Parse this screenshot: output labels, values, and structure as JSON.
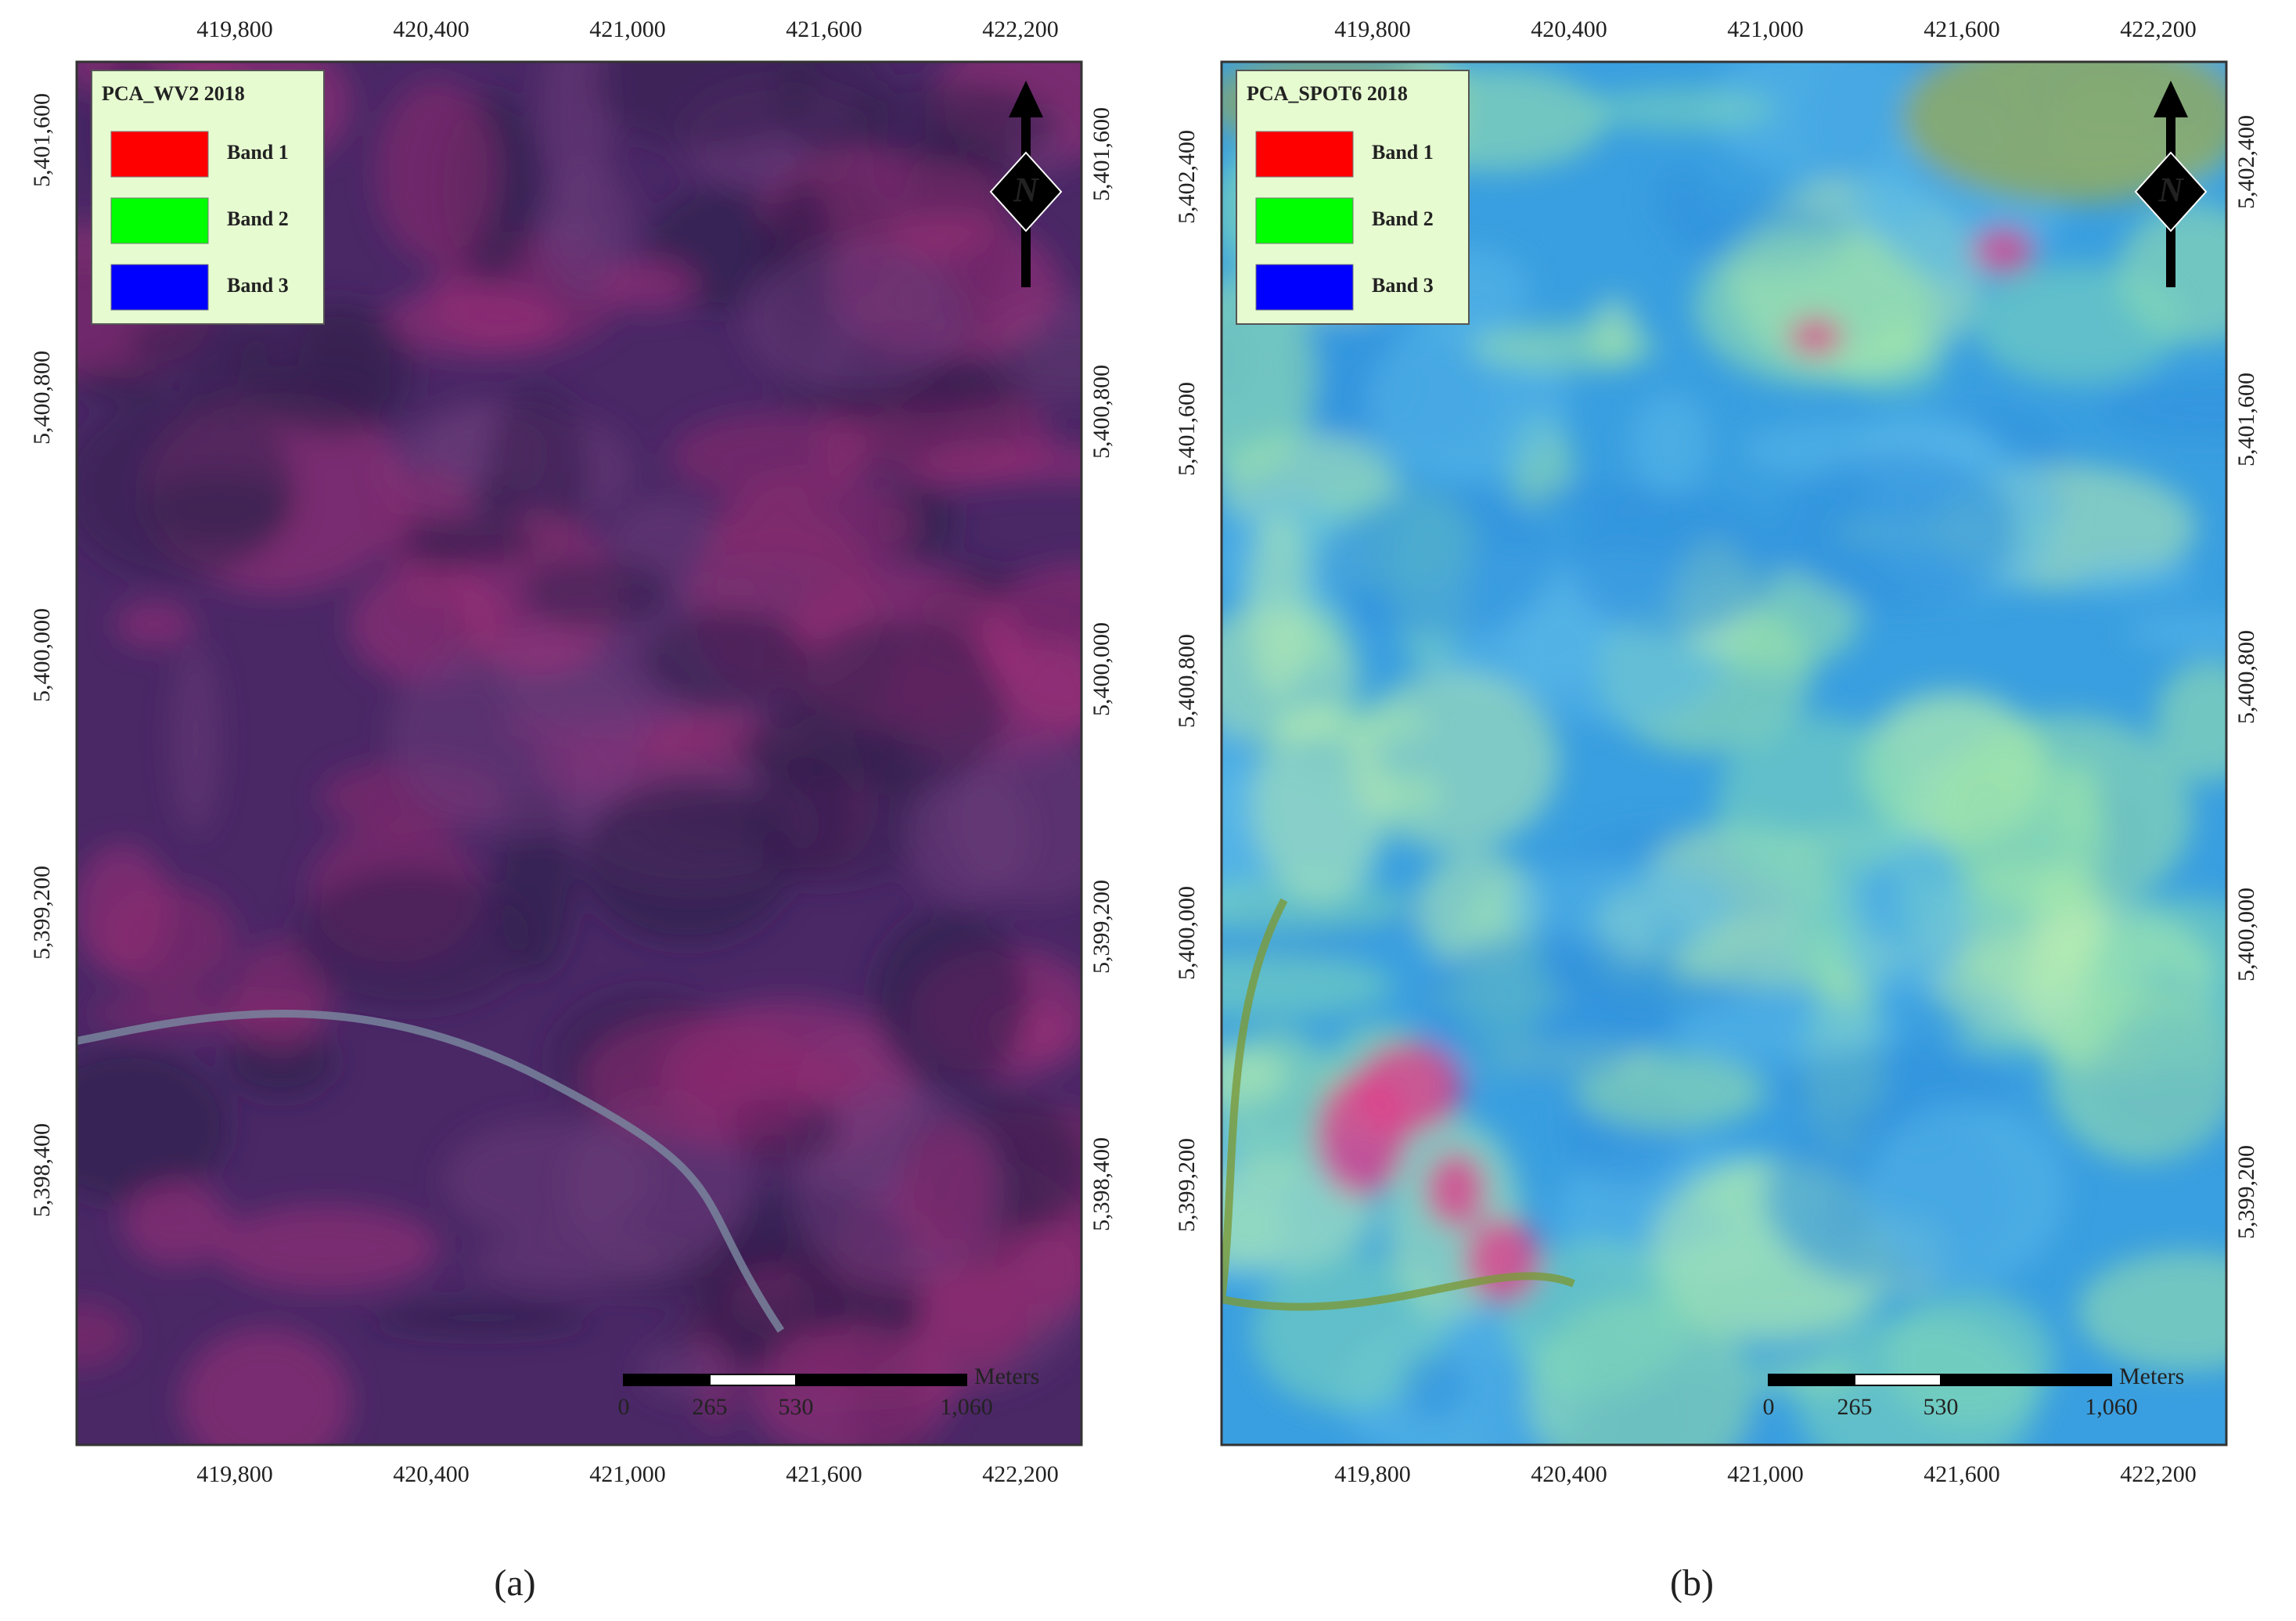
{
  "panels": [
    {
      "legend": {
        "title": "PCA_WV2 2018",
        "items": [
          {
            "label": "Band 1",
            "color": "#ff0000"
          },
          {
            "label": "Band 2",
            "color": "#00ff00"
          },
          {
            "label": "Band 3",
            "color": "#0000ff"
          }
        ]
      },
      "top_ticks": [
        "419,800",
        "420,400",
        "421,000",
        "421,600",
        "422,200"
      ],
      "bottom_ticks": [
        "419,800",
        "420,400",
        "421,000",
        "421,600",
        "422,200"
      ],
      "left_ticks": [
        "5,401,600",
        "5,400,800",
        "5,400,000",
        "5,399,200",
        "5,398,400"
      ],
      "right_ticks": [
        "5,401,600",
        "5,400,800",
        "5,400,000",
        "5,399,200",
        "5,398,400"
      ],
      "north": "N",
      "scale_bar": {
        "labels": [
          "0",
          "265",
          "530",
          "1,060"
        ],
        "unit": "Meters"
      },
      "caption": "(a)"
    },
    {
      "legend": {
        "title": "PCA_SPOT6 2018",
        "items": [
          {
            "label": "Band 1",
            "color": "#ff0000"
          },
          {
            "label": "Band 2",
            "color": "#00ff00"
          },
          {
            "label": "Band 3",
            "color": "#0000ff"
          }
        ]
      },
      "top_ticks": [
        "419,800",
        "420,400",
        "421,000",
        "421,600",
        "422,200"
      ],
      "bottom_ticks": [
        "419,800",
        "420,400",
        "421,000",
        "421,600",
        "422,200"
      ],
      "left_ticks": [
        "5,402,400",
        "5,401,600",
        "5,400,800",
        "5,400,000",
        "5,399,200"
      ],
      "right_ticks": [
        "5,402,400",
        "5,401,600",
        "5,400,800",
        "5,400,000",
        "5,399,200"
      ],
      "north": "N",
      "scale_bar": {
        "labels": [
          "0",
          "265",
          "530",
          "1,060"
        ],
        "unit": "Meters"
      },
      "caption": "(b)"
    }
  ]
}
